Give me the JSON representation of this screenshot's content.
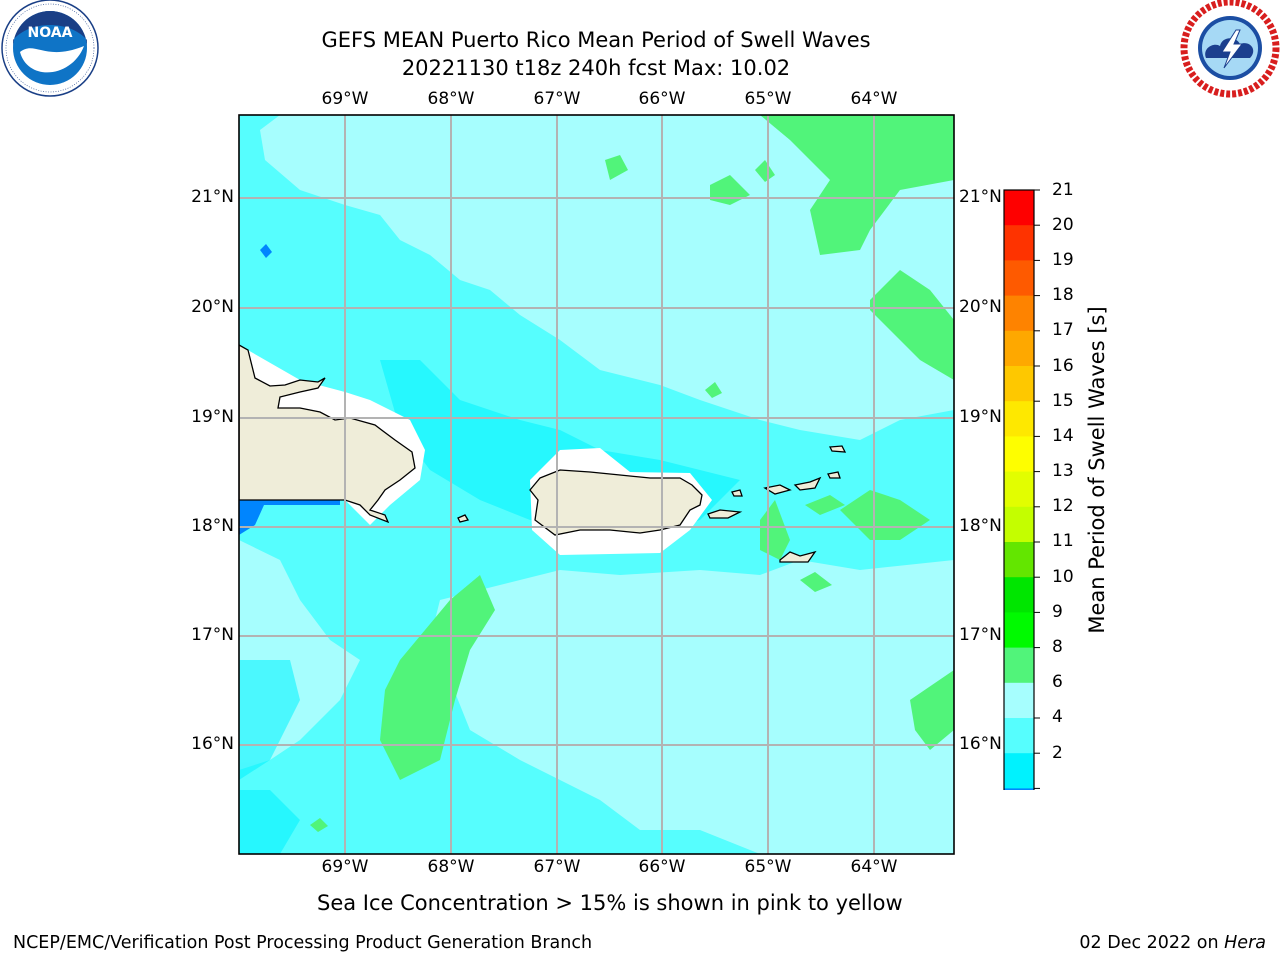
{
  "title_line1": "GEFS MEAN Puerto Rico Mean Period of Swell Waves",
  "title_line2": "20221130 t18z 240h fcst   Max: 10.02",
  "logos": {
    "left": "noaa-logo",
    "right": "nws-logo"
  },
  "map": {
    "lon_ticks": [
      "69°W",
      "68°W",
      "67°W",
      "66°W",
      "65°W",
      "64°W"
    ],
    "lat_ticks": [
      "21°N",
      "20°N",
      "19°N",
      "18°N",
      "17°N",
      "16°N"
    ],
    "lon_range": [
      -70,
      -63.25
    ],
    "lat_range": [
      15,
      21.75
    ],
    "grid": true,
    "land_color": "#efedd9"
  },
  "colorbar": {
    "label": "Mean Period of Swell Waves [s]",
    "ticks": [
      "21",
      "20",
      "19",
      "18",
      "17",
      "16",
      "15",
      "14",
      "13",
      "12",
      "11",
      "10",
      "9",
      "8",
      "6",
      "4",
      "2"
    ],
    "colors": [
      "#fe0000",
      "#fe3300",
      "#fe5a00",
      "#fe8300",
      "#fea800",
      "#fec800",
      "#fee800",
      "#fefe00",
      "#e2fe00",
      "#c4fe00",
      "#63e600",
      "#00e600",
      "#00fa00",
      "#51f47a",
      "#a6fefe",
      "#56fefe",
      "#00f2fe",
      "#0085fe"
    ],
    "extend_color": "#0000e6"
  },
  "sea_ice_note": "Sea Ice Concentration > 15% is shown in pink to yellow",
  "footer_left": "NCEP/EMC/Verification Post Processing Product Generation Branch",
  "footer_date": "02 Dec 2022 on",
  "footer_host": "Hera"
}
